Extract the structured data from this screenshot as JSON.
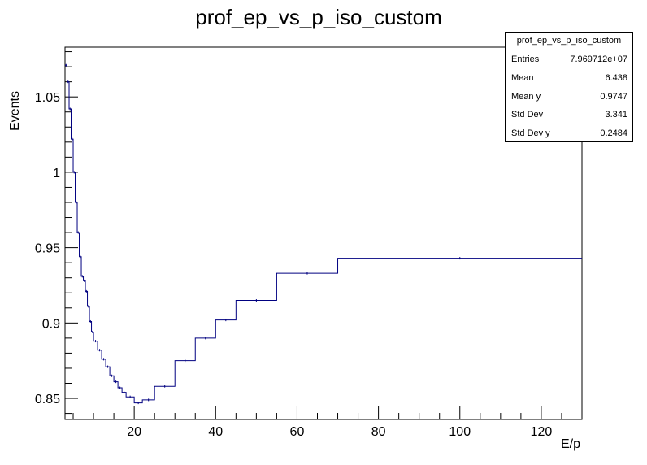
{
  "chart_data": {
    "type": "line",
    "style": "step-histogram-profile",
    "title": "prof_ep_vs_p_iso_custom",
    "xlabel": "E/p",
    "ylabel": "Events",
    "xlim": [
      3,
      130
    ],
    "ylim": [
      0.836,
      1.083
    ],
    "x_ticks": [
      20,
      40,
      60,
      80,
      100,
      120
    ],
    "y_ticks": [
      0.85,
      0.9,
      0.95,
      1,
      1.05
    ],
    "x_tick_labels": [
      "20",
      "40",
      "60",
      "80",
      "100",
      "120"
    ],
    "y_tick_labels": [
      "0.85",
      "0.9",
      "0.95",
      "1",
      "1.05"
    ],
    "line_color": "#000080",
    "bin_edges": [
      3,
      3.5,
      4,
      4.5,
      5,
      5.5,
      6,
      6.5,
      7,
      7.5,
      8,
      8.5,
      9,
      9.5,
      10,
      11,
      12,
      13,
      14,
      15,
      16,
      17,
      18,
      20,
      22,
      25,
      30,
      35,
      40,
      45,
      55,
      70,
      130
    ],
    "values": [
      1.071,
      1.06,
      1.042,
      1.022,
      1.0,
      0.98,
      0.96,
      0.944,
      0.931,
      0.928,
      0.921,
      0.911,
      0.901,
      0.894,
      0.888,
      0.882,
      0.876,
      0.871,
      0.865,
      0.861,
      0.857,
      0.854,
      0.851,
      0.847,
      0.849,
      0.858,
      0.875,
      0.89,
      0.902,
      0.915,
      0.933,
      0.943
    ],
    "stats": {
      "title": "prof_ep_vs_p_iso_custom",
      "rows": [
        {
          "label": "Entries",
          "value": "7.969712e+07"
        },
        {
          "label": "Mean",
          "value": "6.438"
        },
        {
          "label": "Mean y",
          "value": "0.9747"
        },
        {
          "label": "Std Dev",
          "value": "3.341"
        },
        {
          "label": "Std Dev y",
          "value": "0.2484"
        }
      ]
    }
  }
}
